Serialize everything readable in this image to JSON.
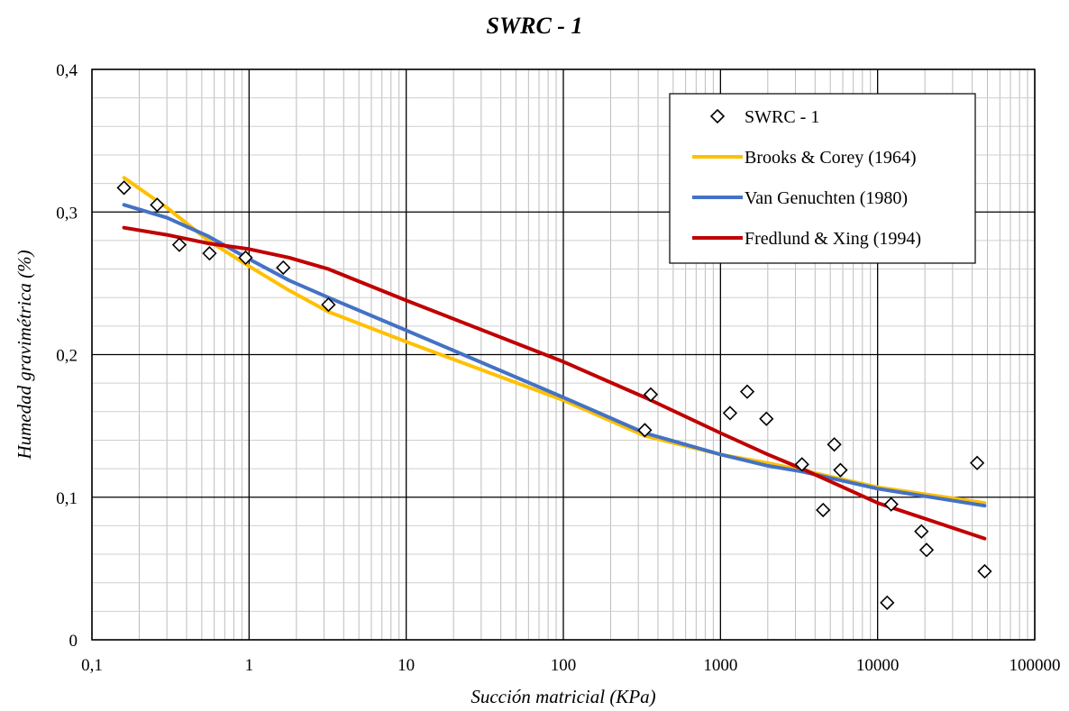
{
  "chart_data": {
    "type": "scatter",
    "title": "SWRC - 1",
    "xlabel": "Succión matricial (KPa)",
    "ylabel": "Humedad gravimétrica (%)",
    "x_scale": "log",
    "xlim": [
      0.1,
      100000
    ],
    "ylim": [
      0,
      0.4
    ],
    "x_ticks": [
      0.1,
      1,
      10,
      100,
      1000,
      10000,
      100000
    ],
    "x_tick_labels": [
      "0,1",
      "1",
      "10",
      "100",
      "1000",
      "10000",
      "100000"
    ],
    "y_ticks": [
      0,
      0.1,
      0.2,
      0.3,
      0.4
    ],
    "y_tick_labels": [
      "0",
      "0,1",
      "0,2",
      "0,3",
      "0,4"
    ],
    "grid": "major and minor",
    "legend_position": "top-right",
    "series": [
      {
        "name": "SWRC - 1",
        "kind": "points",
        "marker": "diamond",
        "color": "#000000",
        "x": [
          0.16,
          0.26,
          0.36,
          0.56,
          0.95,
          1.65,
          3.2,
          330,
          360,
          1150,
          1480,
          1960,
          3300,
          4500,
          5300,
          5800,
          11500,
          12200,
          19000,
          20500,
          43000,
          48000
        ],
        "y": [
          0.317,
          0.305,
          0.277,
          0.271,
          0.268,
          0.261,
          0.235,
          0.147,
          0.172,
          0.159,
          0.174,
          0.155,
          0.123,
          0.091,
          0.137,
          0.119,
          0.026,
          0.095,
          0.076,
          0.063,
          0.124,
          0.048
        ]
      },
      {
        "name": "Brooks & Corey (1964)",
        "kind": "line",
        "color": "#FFC000",
        "x": [
          0.16,
          0.3,
          0.55,
          1.0,
          1.8,
          3.2,
          10,
          100,
          330,
          1000,
          2000,
          3300,
          10000,
          48000
        ],
        "y": [
          0.324,
          0.303,
          0.28,
          0.262,
          0.245,
          0.23,
          0.209,
          0.168,
          0.143,
          0.13,
          0.124,
          0.119,
          0.107,
          0.096
        ]
      },
      {
        "name": "Van Genuchten (1980)",
        "kind": "line",
        "color": "#4472C4",
        "x": [
          0.16,
          0.3,
          0.55,
          1.0,
          1.8,
          3.2,
          10,
          100,
          330,
          1000,
          2000,
          3300,
          10000,
          48000
        ],
        "y": [
          0.305,
          0.296,
          0.283,
          0.267,
          0.252,
          0.24,
          0.217,
          0.17,
          0.145,
          0.13,
          0.122,
          0.118,
          0.106,
          0.094
        ]
      },
      {
        "name": "Fredlund & Xing (1994)",
        "kind": "line",
        "color": "#C00000",
        "x": [
          0.16,
          0.3,
          0.55,
          1.0,
          1.8,
          3.2,
          10,
          100,
          330,
          1000,
          2000,
          3300,
          5000,
          10000,
          20000,
          48000
        ],
        "y": [
          0.289,
          0.284,
          0.278,
          0.274,
          0.268,
          0.26,
          0.238,
          0.195,
          0.17,
          0.145,
          0.13,
          0.12,
          0.111,
          0.096,
          0.085,
          0.071
        ]
      }
    ]
  }
}
